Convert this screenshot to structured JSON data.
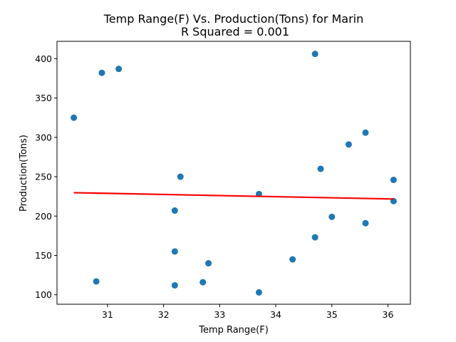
{
  "chart_data": {
    "type": "scatter",
    "title": "Temp Range(F) Vs. Production(Tons) for Marin",
    "subtitle": "R Squared =  0.001",
    "xlabel": "Temp Range(F)",
    "ylabel": "Production(Tons)",
    "xlim": [
      30.1,
      36.4
    ],
    "ylim": [
      88,
      422
    ],
    "xticks": [
      31,
      32,
      33,
      34,
      35,
      36
    ],
    "yticks": [
      100,
      150,
      200,
      250,
      300,
      350,
      400
    ],
    "grid": false,
    "colors": {
      "points": "#1f77b4",
      "fit_line": "#ff0000"
    },
    "points": {
      "x": [
        30.4,
        30.8,
        30.9,
        31.2,
        32.2,
        32.2,
        32.2,
        32.3,
        32.7,
        32.8,
        33.7,
        33.7,
        34.3,
        34.7,
        34.7,
        34.8,
        35.0,
        35.3,
        35.6,
        35.6,
        36.1,
        36.1
      ],
      "y": [
        325,
        117,
        382,
        387,
        207,
        155,
        112,
        250,
        116,
        140,
        228,
        103,
        145,
        406,
        173,
        260,
        199,
        291,
        306,
        191,
        246,
        219
      ]
    },
    "fit_line": {
      "x": [
        30.4,
        36.1
      ],
      "y": [
        229.7,
        221.7
      ]
    }
  }
}
